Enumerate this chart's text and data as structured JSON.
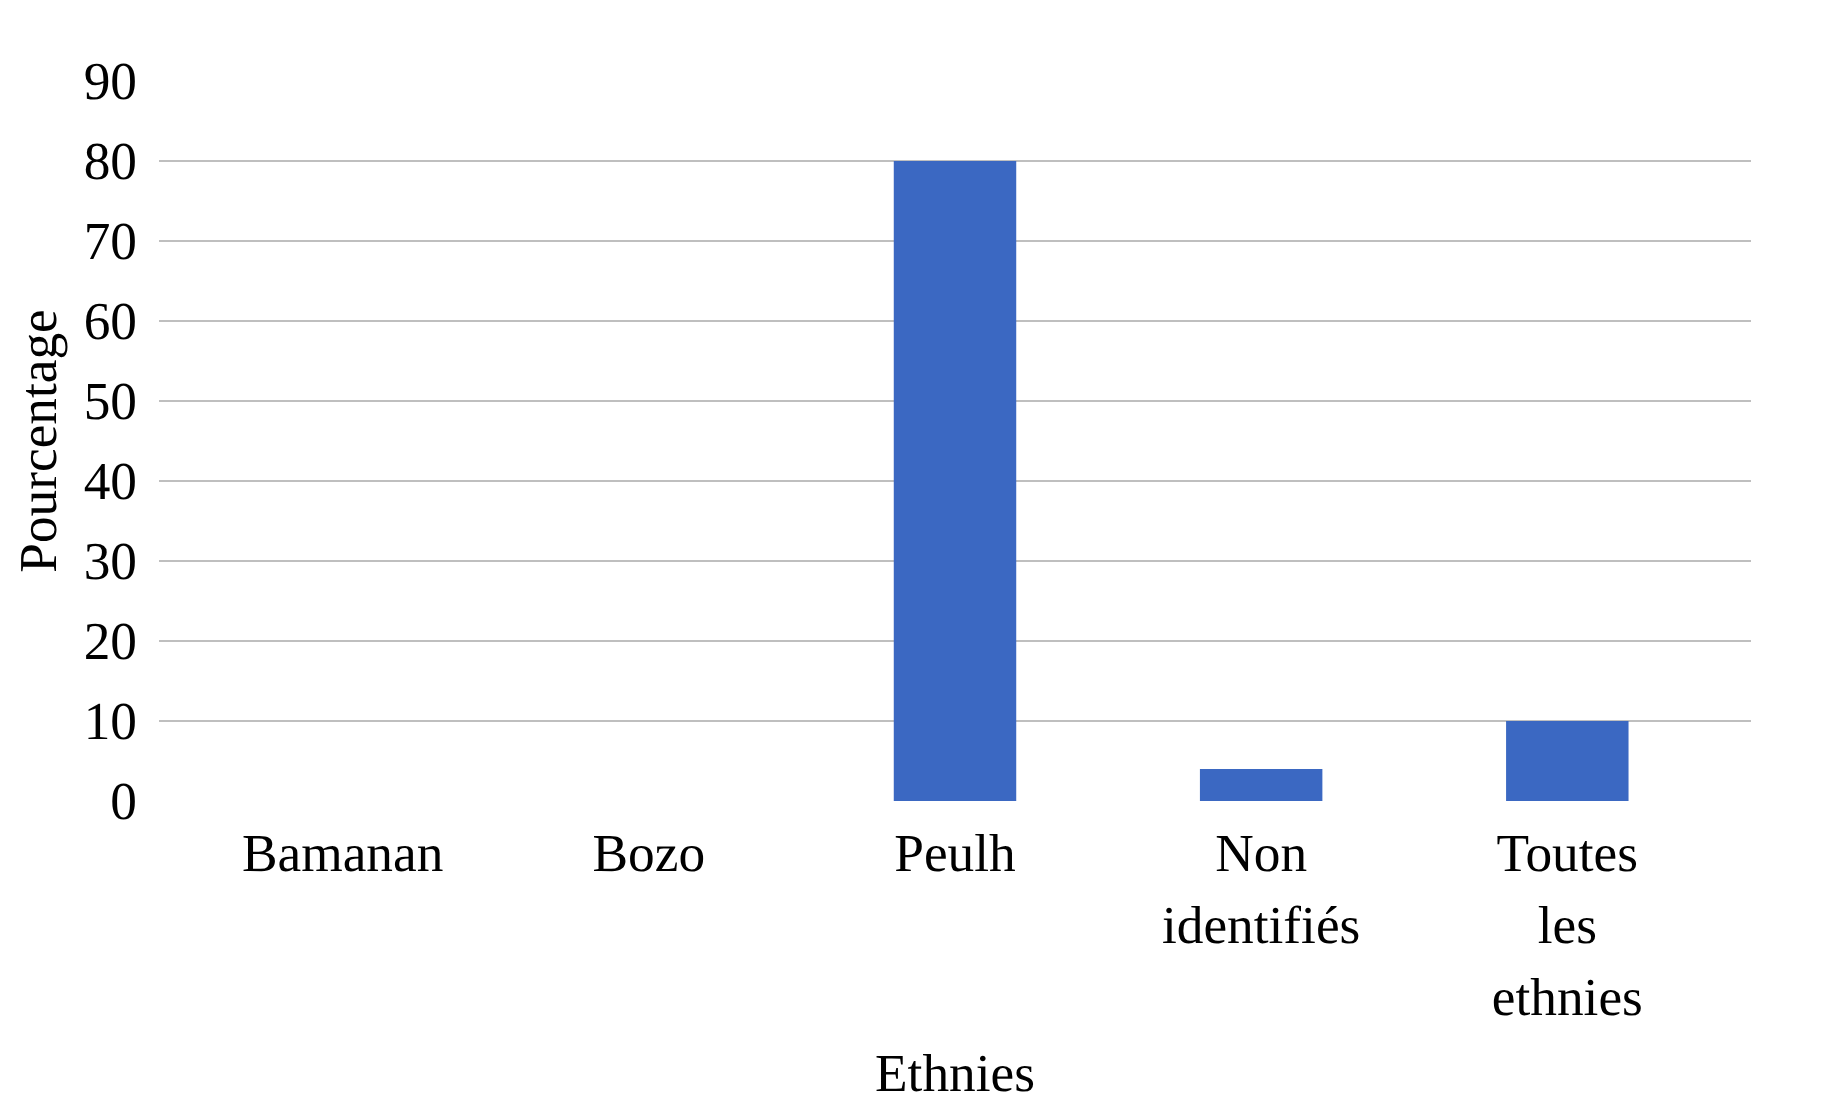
{
  "chart_data": {
    "type": "bar",
    "xlabel": "Ethnies",
    "ylabel": "Pourcentage",
    "categories": [
      "Bamanan",
      "Bozo",
      "Peulh",
      "Non identifiés",
      "Toutes les ethnies"
    ],
    "values": [
      0,
      0,
      80,
      4,
      10
    ],
    "color": "#3b68c2",
    "ylim": [
      0,
      90
    ],
    "yticks": [
      0,
      10,
      20,
      30,
      40,
      50,
      60,
      70,
      80,
      90
    ],
    "grid": "y"
  }
}
